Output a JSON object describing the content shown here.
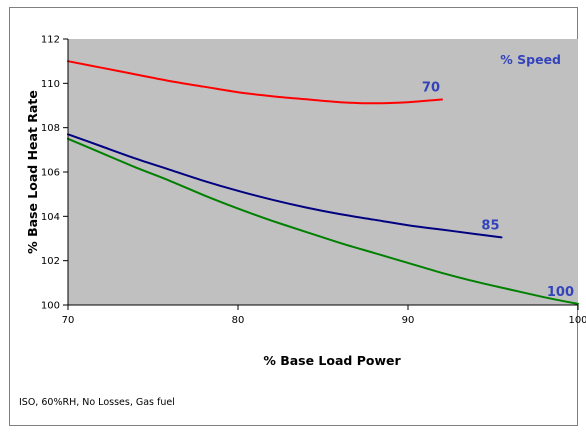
{
  "chart_data": {
    "type": "line",
    "title": "",
    "xlabel": "% Base Load Power",
    "ylabel": "% Base Load Heat Rate",
    "xlim": [
      70,
      100
    ],
    "ylim": [
      100,
      112
    ],
    "x_ticks": [
      70,
      80,
      90,
      100
    ],
    "y_ticks": [
      100,
      102,
      104,
      106,
      108,
      110,
      112
    ],
    "grid": false,
    "plot_background": "#c0c0c0",
    "legend_title": "% Speed",
    "legend_placement": "top-right",
    "series": [
      {
        "name": "70",
        "color": "#ff0000",
        "x": [
          70,
          72,
          74,
          76,
          78,
          80,
          82,
          84,
          86,
          88,
          90,
          92
        ],
        "y": [
          111.0,
          110.7,
          110.4,
          110.1,
          109.85,
          109.6,
          109.42,
          109.28,
          109.15,
          109.1,
          109.15,
          109.27
        ]
      },
      {
        "name": "85",
        "color": "#000080",
        "x": [
          70,
          72,
          74,
          76,
          78,
          80,
          82,
          84,
          86,
          88,
          90,
          92,
          94,
          95.5
        ],
        "y": [
          107.7,
          107.15,
          106.6,
          106.1,
          105.6,
          105.15,
          104.75,
          104.4,
          104.1,
          103.85,
          103.6,
          103.4,
          103.2,
          103.05
        ]
      },
      {
        "name": "100",
        "color": "#008000",
        "x": [
          70,
          72,
          74,
          76,
          78,
          80,
          82,
          84,
          86,
          88,
          90,
          92,
          94,
          96,
          98,
          100
        ],
        "y": [
          107.5,
          106.85,
          106.2,
          105.6,
          104.95,
          104.35,
          103.8,
          103.3,
          102.8,
          102.35,
          101.9,
          101.45,
          101.05,
          100.7,
          100.35,
          100.05
        ]
      }
    ]
  },
  "footnote": "ISO, 60%RH, No Losses, Gas fuel"
}
